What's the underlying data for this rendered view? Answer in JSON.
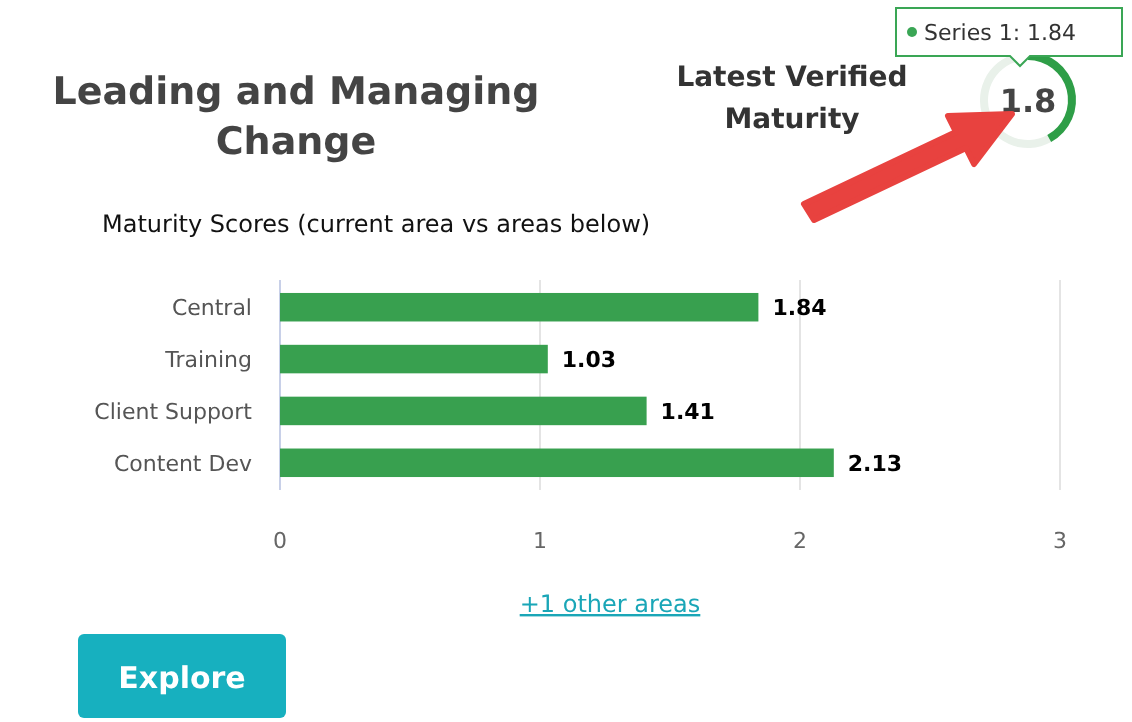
{
  "chart_data": [
    {
      "type": "bar",
      "orientation": "horizontal",
      "title": "Leading and Managing Change",
      "subtitle": "Maturity Scores (current area vs areas below)",
      "categories": [
        "Central",
        "Training",
        "Client Support",
        "Content Dev"
      ],
      "values": [
        1.84,
        1.03,
        1.41,
        2.13
      ],
      "color": "#38a04f",
      "xlim": [
        0,
        3
      ],
      "xticks": [
        0,
        1,
        2,
        3
      ],
      "grid": "x",
      "data_labels": true,
      "annotations": [
        "+1 other areas",
        "Explore"
      ]
    },
    {
      "type": "donut",
      "title": "Latest Verified Maturity",
      "categories": [
        null,
        null
      ],
      "values": [
        42,
        58
      ],
      "colors": [
        "#2e9e47",
        "#e9f1ea"
      ],
      "annotations": [
        "1.8",
        "Series 1: 1.84"
      ]
    }
  ]
}
